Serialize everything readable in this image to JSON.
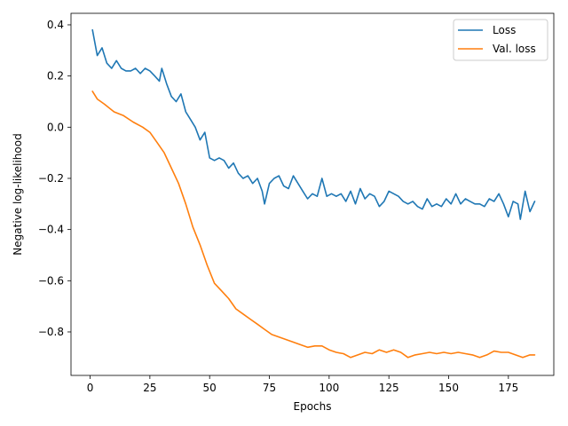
{
  "chart_data": {
    "type": "line",
    "title": "",
    "xlabel": "Epochs",
    "ylabel": "Negative log-likelihood",
    "xlim": [
      -8,
      194
    ],
    "ylim": [
      -0.97,
      0.445
    ],
    "xticks": [
      0,
      25,
      50,
      75,
      100,
      125,
      150,
      175
    ],
    "yticks": [
      -0.8,
      -0.6,
      -0.4,
      -0.2,
      0.0,
      0.2,
      0.4
    ],
    "ytick_labels": [
      "−0.8",
      "−0.6",
      "−0.4",
      "−0.2",
      "0.0",
      "0.2",
      "0.4"
    ],
    "grid": false,
    "legend_position": "top-right",
    "series": [
      {
        "name": "Loss",
        "color": "#1f77b4",
        "points": [
          [
            1,
            0.38
          ],
          [
            3,
            0.28
          ],
          [
            5,
            0.31
          ],
          [
            7,
            0.25
          ],
          [
            9,
            0.23
          ],
          [
            11,
            0.26
          ],
          [
            13,
            0.23
          ],
          [
            15,
            0.22
          ],
          [
            17,
            0.22
          ],
          [
            19,
            0.23
          ],
          [
            21,
            0.21
          ],
          [
            23,
            0.23
          ],
          [
            25,
            0.22
          ],
          [
            27,
            0.2
          ],
          [
            29,
            0.18
          ],
          [
            30,
            0.23
          ],
          [
            32,
            0.17
          ],
          [
            34,
            0.12
          ],
          [
            36,
            0.1
          ],
          [
            38,
            0.13
          ],
          [
            40,
            0.06
          ],
          [
            42,
            0.03
          ],
          [
            44,
            0.0
          ],
          [
            46,
            -0.05
          ],
          [
            48,
            -0.02
          ],
          [
            50,
            -0.12
          ],
          [
            52,
            -0.13
          ],
          [
            54,
            -0.12
          ],
          [
            56,
            -0.13
          ],
          [
            58,
            -0.16
          ],
          [
            60,
            -0.14
          ],
          [
            62,
            -0.18
          ],
          [
            64,
            -0.2
          ],
          [
            66,
            -0.19
          ],
          [
            68,
            -0.22
          ],
          [
            70,
            -0.2
          ],
          [
            72,
            -0.25
          ],
          [
            73,
            -0.3
          ],
          [
            75,
            -0.22
          ],
          [
            77,
            -0.2
          ],
          [
            79,
            -0.19
          ],
          [
            81,
            -0.23
          ],
          [
            83,
            -0.24
          ],
          [
            85,
            -0.19
          ],
          [
            87,
            -0.22
          ],
          [
            89,
            -0.25
          ],
          [
            91,
            -0.28
          ],
          [
            93,
            -0.26
          ],
          [
            95,
            -0.27
          ],
          [
            97,
            -0.2
          ],
          [
            99,
            -0.27
          ],
          [
            101,
            -0.26
          ],
          [
            103,
            -0.27
          ],
          [
            105,
            -0.26
          ],
          [
            107,
            -0.29
          ],
          [
            109,
            -0.25
          ],
          [
            111,
            -0.3
          ],
          [
            113,
            -0.24
          ],
          [
            115,
            -0.28
          ],
          [
            117,
            -0.26
          ],
          [
            119,
            -0.27
          ],
          [
            121,
            -0.31
          ],
          [
            123,
            -0.29
          ],
          [
            125,
            -0.25
          ],
          [
            127,
            -0.26
          ],
          [
            129,
            -0.27
          ],
          [
            131,
            -0.29
          ],
          [
            133,
            -0.3
          ],
          [
            135,
            -0.29
          ],
          [
            137,
            -0.31
          ],
          [
            139,
            -0.32
          ],
          [
            141,
            -0.28
          ],
          [
            143,
            -0.31
          ],
          [
            145,
            -0.3
          ],
          [
            147,
            -0.31
          ],
          [
            149,
            -0.28
          ],
          [
            151,
            -0.3
          ],
          [
            153,
            -0.26
          ],
          [
            155,
            -0.3
          ],
          [
            157,
            -0.28
          ],
          [
            159,
            -0.29
          ],
          [
            161,
            -0.3
          ],
          [
            163,
            -0.3
          ],
          [
            165,
            -0.31
          ],
          [
            167,
            -0.28
          ],
          [
            169,
            -0.29
          ],
          [
            171,
            -0.26
          ],
          [
            173,
            -0.3
          ],
          [
            175,
            -0.35
          ],
          [
            177,
            -0.29
          ],
          [
            179,
            -0.3
          ],
          [
            180,
            -0.36
          ],
          [
            182,
            -0.25
          ],
          [
            184,
            -0.33
          ],
          [
            186,
            -0.29
          ]
        ]
      },
      {
        "name": "Val. loss",
        "color": "#ff7f0e",
        "points": [
          [
            1,
            0.14
          ],
          [
            3,
            0.11
          ],
          [
            6,
            0.09
          ],
          [
            10,
            0.06
          ],
          [
            14,
            0.045
          ],
          [
            18,
            0.02
          ],
          [
            22,
            0.0
          ],
          [
            25,
            -0.02
          ],
          [
            28,
            -0.06
          ],
          [
            31,
            -0.1
          ],
          [
            34,
            -0.16
          ],
          [
            37,
            -0.22
          ],
          [
            40,
            -0.3
          ],
          [
            43,
            -0.39
          ],
          [
            46,
            -0.46
          ],
          [
            49,
            -0.54
          ],
          [
            52,
            -0.61
          ],
          [
            55,
            -0.64
          ],
          [
            58,
            -0.67
          ],
          [
            61,
            -0.71
          ],
          [
            64,
            -0.73
          ],
          [
            67,
            -0.75
          ],
          [
            70,
            -0.77
          ],
          [
            73,
            -0.79
          ],
          [
            76,
            -0.81
          ],
          [
            79,
            -0.82
          ],
          [
            82,
            -0.83
          ],
          [
            85,
            -0.84
          ],
          [
            88,
            -0.85
          ],
          [
            91,
            -0.86
          ],
          [
            94,
            -0.855
          ],
          [
            97,
            -0.855
          ],
          [
            100,
            -0.87
          ],
          [
            103,
            -0.88
          ],
          [
            106,
            -0.885
          ],
          [
            109,
            -0.9
          ],
          [
            112,
            -0.89
          ],
          [
            115,
            -0.88
          ],
          [
            118,
            -0.885
          ],
          [
            121,
            -0.87
          ],
          [
            124,
            -0.88
          ],
          [
            127,
            -0.87
          ],
          [
            130,
            -0.88
          ],
          [
            133,
            -0.9
          ],
          [
            136,
            -0.89
          ],
          [
            139,
            -0.885
          ],
          [
            142,
            -0.88
          ],
          [
            145,
            -0.885
          ],
          [
            148,
            -0.88
          ],
          [
            151,
            -0.885
          ],
          [
            154,
            -0.88
          ],
          [
            157,
            -0.885
          ],
          [
            160,
            -0.89
          ],
          [
            163,
            -0.9
          ],
          [
            166,
            -0.89
          ],
          [
            169,
            -0.875
          ],
          [
            172,
            -0.88
          ],
          [
            175,
            -0.88
          ],
          [
            178,
            -0.89
          ],
          [
            181,
            -0.9
          ],
          [
            184,
            -0.89
          ],
          [
            186,
            -0.89
          ]
        ]
      }
    ]
  }
}
